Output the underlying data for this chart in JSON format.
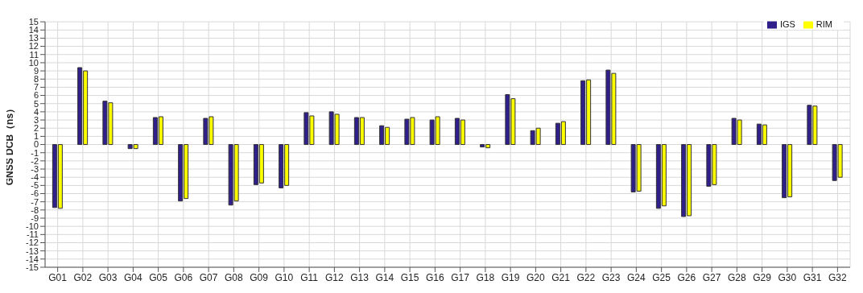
{
  "chart_data": {
    "type": "bar",
    "ylabel": "GNSS DCB（ns）",
    "categories": [
      "G01",
      "G02",
      "G03",
      "G04",
      "G05",
      "G06",
      "G07",
      "G08",
      "G09",
      "G10",
      "G11",
      "G12",
      "G13",
      "G14",
      "G15",
      "G16",
      "G17",
      "G18",
      "G19",
      "G20",
      "G21",
      "G22",
      "G23",
      "G24",
      "G25",
      "G26",
      "G27",
      "G28",
      "G29",
      "G30",
      "G31",
      "G32"
    ],
    "series": [
      {
        "name": "IGS",
        "color": "#2e1f8a",
        "values": [
          -7.7,
          9.4,
          5.3,
          -0.5,
          3.3,
          -6.9,
          3.2,
          -7.4,
          -4.9,
          -5.3,
          3.9,
          4.0,
          3.3,
          2.3,
          3.1,
          3.0,
          3.2,
          -0.3,
          6.1,
          1.7,
          2.6,
          7.8,
          9.1,
          -5.8,
          -7.8,
          -8.8,
          -5.1,
          3.2,
          2.5,
          -6.5,
          4.8,
          -4.4
        ]
      },
      {
        "name": "RIM",
        "color": "#ffff00",
        "values": [
          -7.8,
          9.0,
          5.1,
          -0.5,
          3.4,
          -6.6,
          3.4,
          -6.9,
          -4.7,
          -5.0,
          3.5,
          3.7,
          3.3,
          2.1,
          3.3,
          3.4,
          3.0,
          -0.4,
          5.6,
          2.0,
          2.8,
          7.9,
          8.7,
          -5.7,
          -7.5,
          -8.7,
          -4.9,
          3.0,
          2.4,
          -6.4,
          4.7,
          -4.0
        ]
      }
    ],
    "ylim": [
      -15,
      15
    ],
    "yticks": [
      -15,
      -14,
      -13,
      -12,
      -11,
      -10,
      -9,
      -8,
      -7,
      -6,
      -5,
      -4,
      -3,
      -2,
      -1,
      0,
      1,
      2,
      3,
      4,
      5,
      6,
      7,
      8,
      9,
      10,
      11,
      12,
      13,
      14,
      15
    ],
    "grid": true,
    "legend": "top right"
  }
}
